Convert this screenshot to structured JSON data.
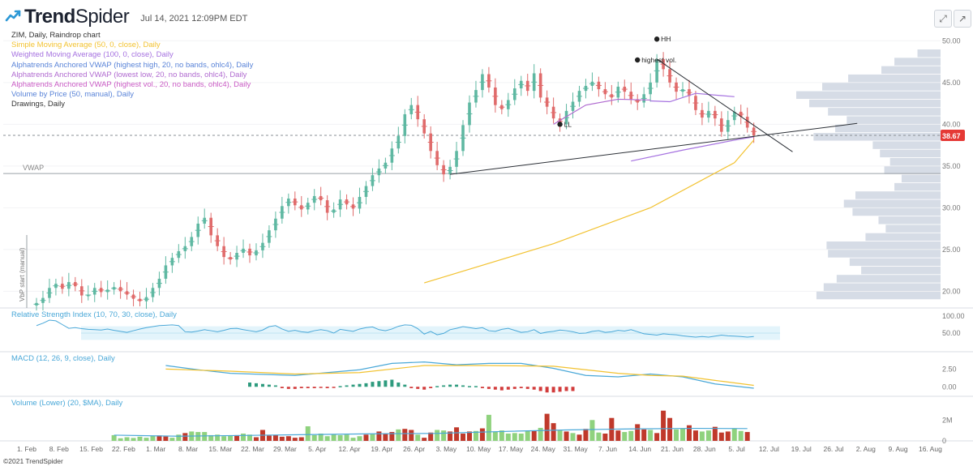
{
  "header": {
    "brand": "Trend",
    "brand_suffix": "Spider",
    "timestamp": "Jul 14, 2021 12:09PM EDT"
  },
  "legend": [
    {
      "text": "ZIM, Daily, Raindrop chart",
      "color": "#333333"
    },
    {
      "text": "Simple Moving Average (50, 0, close), Daily",
      "color": "#f2c230"
    },
    {
      "text": "Weighted Moving Average (100, 0, close), Daily",
      "color": "#a672e0"
    },
    {
      "text": "Alphatrends Anchored VWAP (highest high, 20, no bands, ohlc4), Daily",
      "color": "#5a84d8"
    },
    {
      "text": "Alphatrends Anchored VWAP (lowest low, 20, no bands, ohlc4), Daily",
      "color": "#b06ad0"
    },
    {
      "text": "Alphatrends Anchored VWAP (highest vol., 20, no bands, ohlc4), Daily",
      "color": "#c95ac4"
    },
    {
      "text": "Volume by Price (50, manual), Daily",
      "color": "#5a84d8"
    },
    {
      "text": "Drawings, Daily",
      "color": "#333333"
    }
  ],
  "panels": {
    "rsi": {
      "label": "Relative Strength Index (10, 70, 30, close), Daily",
      "color": "#4aa8d8"
    },
    "macd": {
      "label": "MACD (12, 26, 9, close), Daily",
      "color": "#4aa8d8"
    },
    "volume": {
      "label": "Volume (Lower) (20, $MA), Daily",
      "color": "#4aa8d8"
    }
  },
  "copyright": "©2021 TrendSpider",
  "colors": {
    "up": "#5fb8a2",
    "down": "#e06b6b",
    "sma": "#f2c230",
    "wma": "#a672e0",
    "vwap_high": "#5a84d8",
    "vwap_low": "#b06ad0",
    "vbp": "#d4dae5",
    "vol_up": "#8fd27e",
    "vol_down": "#c0392b",
    "macd_line": "#4aa8d8",
    "signal_line": "#f2c230",
    "rsi_line": "#4aa8d8",
    "rsi_band": "#e3f4fb",
    "current_price_bg": "#e53935"
  },
  "chart_data": {
    "type": "candlestick",
    "symbol": "ZIM",
    "timeframe": "Daily",
    "current_price": 38.67,
    "ylim": [
      18,
      51
    ],
    "price_ticks": [
      20,
      25,
      30,
      35,
      40,
      45,
      50
    ],
    "price_tick_labels": [
      "20.00",
      "25.00",
      "30.00",
      "35.00",
      "40.00",
      "45.00",
      "50.00"
    ],
    "x_labels": [
      "1. Feb",
      "8. Feb",
      "15. Feb",
      "22. Feb",
      "1. Mar",
      "8. Mar",
      "15. Mar",
      "22. Mar",
      "29. Mar",
      "5. Apr",
      "12. Apr",
      "19. Apr",
      "26. Apr",
      "3. May",
      "10. May",
      "17. May",
      "24. May",
      "31. May",
      "7. Jun",
      "14. Jun",
      "21. Jun",
      "28. Jun",
      "5. Jul",
      "12. Jul",
      "19. Jul",
      "26. Jul",
      "2. Aug",
      "9. Aug",
      "16. Aug"
    ],
    "price_closes": [
      18.6,
      19.2,
      20.4,
      20.9,
      20.3,
      21.1,
      20.6,
      19.5,
      19.6,
      20.4,
      19.9,
      20.2,
      20.5,
      20.0,
      19.6,
      19.1,
      18.8,
      19.3,
      20.4,
      21.5,
      23.1,
      24.0,
      24.8,
      25.4,
      26.5,
      28.1,
      28.8,
      26.7,
      25.4,
      24.1,
      23.8,
      24.6,
      25.1,
      24.3,
      24.9,
      25.8,
      27.3,
      28.7,
      30.2,
      31.1,
      30.3,
      29.8,
      30.6,
      31.4,
      30.9,
      29.4,
      29.8,
      31.0,
      30.4,
      29.9,
      31.3,
      32.6,
      33.9,
      34.7,
      35.4,
      37.1,
      38.6,
      41.2,
      42.3,
      40.6,
      38.9,
      36.8,
      35.1,
      34.0,
      34.9,
      36.8,
      39.9,
      42.6,
      44.1,
      46.0,
      44.4,
      42.3,
      41.8,
      42.9,
      44.3,
      45.2,
      44.0,
      46.1,
      43.2,
      42.1,
      40.7,
      40.0,
      41.6,
      42.7,
      44.0,
      44.6,
      45.1,
      44.2,
      43.6,
      43.2,
      44.5,
      43.9,
      43.0,
      42.6,
      43.6,
      45.0,
      47.8,
      46.6,
      45.0,
      43.9,
      44.2,
      43.4,
      41.7,
      40.8,
      41.6,
      40.7,
      39.1,
      40.5,
      41.5,
      40.9,
      39.6,
      38.67
    ],
    "sma50": [
      [
        60,
        21.0
      ],
      [
        80,
        25.7
      ],
      [
        95,
        30.0
      ],
      [
        108,
        35.4
      ],
      [
        111,
        38.1
      ]
    ],
    "wma100_highest_vol_vwap": [
      [
        95,
        42.8
      ],
      [
        98,
        42.7
      ],
      [
        102,
        43.7
      ],
      [
        108,
        43.3
      ]
    ],
    "lows_vwap": [
      [
        80,
        40.0
      ],
      [
        85,
        42.3
      ],
      [
        90,
        43.0
      ],
      [
        95,
        42.9
      ]
    ],
    "vwap_lowest_low": [
      [
        92,
        35.6
      ],
      [
        100,
        36.9
      ],
      [
        108,
        38.1
      ],
      [
        111,
        38.5
      ]
    ],
    "markers": [
      {
        "label": "HH",
        "x": 96,
        "y": 50.2
      },
      {
        "label": "highest vol.",
        "x": 93,
        "y": 47.7
      },
      {
        "label": "LL",
        "x": 81,
        "y": 40.0
      }
    ],
    "trendlines": [
      {
        "from": [
          64,
          34.0
        ],
        "to": [
          127,
          40.1
        ]
      },
      {
        "from": [
          96,
          47.8
        ],
        "to": [
          117,
          36.7
        ]
      }
    ],
    "horizontal_levels": [
      {
        "label": "VWAP",
        "price": 34.1
      }
    ],
    "volume_by_price": [
      {
        "price": 19.5,
        "size": 0.86
      },
      {
        "price": 20.5,
        "size": 0.81
      },
      {
        "price": 21.5,
        "size": 0.72
      },
      {
        "price": 22.5,
        "size": 0.55
      },
      {
        "price": 23.5,
        "size": 0.63
      },
      {
        "price": 24.5,
        "size": 0.78
      },
      {
        "price": 25.5,
        "size": 0.79
      },
      {
        "price": 26.5,
        "size": 0.52
      },
      {
        "price": 27.5,
        "size": 0.38
      },
      {
        "price": 28.5,
        "size": 0.43
      },
      {
        "price": 29.5,
        "size": 0.61
      },
      {
        "price": 30.5,
        "size": 0.67
      },
      {
        "price": 31.5,
        "size": 0.59
      },
      {
        "price": 32.5,
        "size": 0.32
      },
      {
        "price": 33.5,
        "size": 0.27
      },
      {
        "price": 34.5,
        "size": 0.39
      },
      {
        "price": 35.5,
        "size": 0.35
      },
      {
        "price": 36.5,
        "size": 0.42
      },
      {
        "price": 37.5,
        "size": 0.47
      },
      {
        "price": 38.5,
        "size": 0.88
      },
      {
        "price": 39.5,
        "size": 0.73
      },
      {
        "price": 40.5,
        "size": 0.65
      },
      {
        "price": 41.5,
        "size": 0.78
      },
      {
        "price": 42.5,
        "size": 0.91
      },
      {
        "price": 43.5,
        "size": 1.0
      },
      {
        "price": 44.5,
        "size": 0.82
      },
      {
        "price": 45.5,
        "size": 0.64
      },
      {
        "price": 46.5,
        "size": 0.41
      },
      {
        "price": 47.5,
        "size": 0.32
      },
      {
        "price": 48.5,
        "size": 0.16
      }
    ],
    "rsi": {
      "ylim": [
        0,
        100
      ],
      "ticks": [
        50,
        100
      ],
      "band": [
        30,
        70
      ],
      "values": [
        72,
        79,
        88,
        86,
        75,
        64,
        66,
        63,
        61,
        60,
        59,
        62,
        58,
        55,
        52,
        57,
        62,
        66,
        69,
        72,
        73,
        74,
        72,
        54,
        53,
        56,
        60,
        57,
        54,
        58,
        63,
        64,
        60,
        57,
        54,
        59,
        69,
        72,
        62,
        55,
        58,
        54,
        52,
        57,
        60,
        57,
        50,
        61,
        58,
        55,
        62,
        66,
        68,
        60,
        57,
        62,
        70,
        74,
        73,
        63,
        47,
        55,
        45,
        49,
        60,
        64,
        69,
        66,
        63,
        66,
        57,
        55,
        61,
        64,
        58,
        52,
        54,
        60,
        49,
        53,
        55,
        59,
        57,
        54,
        49,
        50,
        55,
        57,
        52,
        54,
        58,
        56,
        60,
        54,
        48,
        46,
        44,
        48,
        46,
        45,
        42,
        40,
        38,
        40,
        38,
        41,
        44,
        42,
        41,
        40,
        38,
        40
      ]
    },
    "macd": {
      "ticks": [
        0.0,
        2.5
      ],
      "tick_labels": [
        "0.00",
        "2.50"
      ],
      "macd_line": [
        [
          20,
          3.0
        ],
        [
          25,
          2.4
        ],
        [
          30,
          1.9
        ],
        [
          40,
          1.6
        ],
        [
          50,
          2.4
        ],
        [
          55,
          3.3
        ],
        [
          60,
          3.5
        ],
        [
          65,
          3.1
        ],
        [
          70,
          3.3
        ],
        [
          75,
          3.3
        ],
        [
          80,
          2.6
        ],
        [
          85,
          1.6
        ],
        [
          90,
          1.4
        ],
        [
          95,
          1.8
        ],
        [
          100,
          1.4
        ],
        [
          105,
          0.4
        ],
        [
          111,
          -0.2
        ]
      ],
      "signal_line": [
        [
          20,
          2.5
        ],
        [
          30,
          2.2
        ],
        [
          40,
          1.8
        ],
        [
          50,
          2.0
        ],
        [
          60,
          3.0
        ],
        [
          70,
          3.0
        ],
        [
          80,
          2.9
        ],
        [
          90,
          1.9
        ],
        [
          95,
          1.6
        ],
        [
          100,
          1.5
        ],
        [
          105,
          0.9
        ],
        [
          111,
          0.2
        ]
      ],
      "histogram": [
        0.6,
        0.5,
        0.4,
        0.3,
        0.2,
        -0.2,
        -0.3,
        -0.3,
        -0.2,
        -0.2,
        -0.2,
        -0.1,
        -0.2,
        -0.1,
        0.1,
        0.2,
        0.3,
        0.4,
        0.5,
        0.7,
        0.8,
        0.9,
        1.0,
        0.6,
        0.3,
        -0.2,
        -0.3,
        -0.4,
        -0.2,
        0.1,
        0.2,
        0.3,
        0.3,
        0.2,
        0.1,
        0.1,
        -0.2,
        -0.3,
        -0.4,
        -0.5,
        -0.4,
        -0.3,
        -0.2,
        -0.3,
        -0.4,
        -0.6,
        -0.8,
        -0.8,
        -0.7,
        -0.6,
        -0.6
      ]
    },
    "volume": {
      "ticks": [
        0,
        2
      ],
      "tick_labels": [
        "0",
        "2M"
      ],
      "ylim": [
        0,
        3.5
      ],
      "values": [
        0.55,
        0.25,
        0.35,
        0.28,
        0.4,
        0.3,
        0.5,
        0.52,
        0.42,
        0.3,
        0.6,
        0.75,
        0.9,
        0.85,
        0.85,
        0.55,
        0.6,
        0.45,
        0.5,
        0.55,
        0.7,
        0.6,
        0.35,
        1.05,
        0.5,
        0.55,
        0.4,
        0.45,
        0.3,
        0.35,
        1.4,
        0.55,
        0.7,
        0.45,
        0.6,
        0.55,
        0.6,
        0.3,
        0.45,
        0.6,
        0.65,
        0.9,
        0.7,
        0.85,
        1.1,
        1.15,
        1.05,
        0.6,
        0.3,
        0.8,
        1.05,
        1.0,
        0.9,
        1.3,
        0.7,
        0.9,
        0.95,
        1.2,
        2.5,
        0.9,
        1.0,
        0.7,
        0.75,
        0.7,
        0.95,
        1.0,
        1.25,
        2.6,
        1.7,
        1.0,
        0.9,
        0.75,
        0.6,
        1.15,
        2.0,
        0.8,
        0.7,
        2.2,
        1.0,
        0.85,
        0.95,
        1.6,
        1.1,
        1.05,
        0.75,
        2.9,
        2.2,
        1.1,
        1.2,
        1.5,
        1.0,
        0.9,
        1.0,
        1.35,
        0.8,
        0.9,
        1.2,
        0.95,
        0.85
      ],
      "ma": [
        [
          0,
          0.55
        ],
        [
          10,
          0.45
        ],
        [
          20,
          0.52
        ],
        [
          30,
          0.6
        ],
        [
          40,
          0.68
        ],
        [
          50,
          0.72
        ],
        [
          60,
          0.9
        ],
        [
          70,
          1.05
        ],
        [
          80,
          1.15
        ],
        [
          90,
          1.2
        ],
        [
          98,
          1.18
        ]
      ]
    }
  }
}
